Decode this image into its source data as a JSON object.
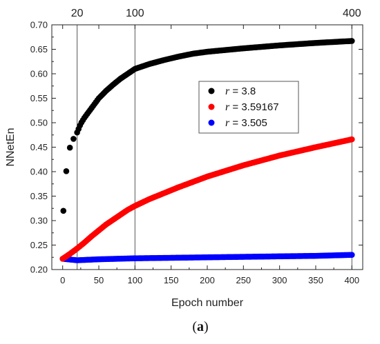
{
  "chart_data": {
    "type": "scatter",
    "title": "",
    "xlabel": "Epoch number",
    "ylabel": "NNetEn",
    "xlim": [
      -15,
      415
    ],
    "ylim": [
      0.2,
      0.7
    ],
    "xticks": [
      0,
      50,
      100,
      150,
      200,
      250,
      300,
      350,
      400
    ],
    "yticks": [
      0.2,
      0.25,
      0.3,
      0.35,
      0.4,
      0.45,
      0.5,
      0.55,
      0.6,
      0.65,
      0.7
    ],
    "xtick_labels": [
      "0",
      "50",
      "100",
      "150",
      "200",
      "250",
      "300",
      "350",
      "400"
    ],
    "ytick_labels": [
      "0.20",
      "0.25",
      "0.30",
      "0.35",
      "0.40",
      "0.45",
      "0.50",
      "0.55",
      "0.60",
      "0.65",
      "0.70"
    ],
    "vlines": [
      {
        "x": 20,
        "label": "20"
      },
      {
        "x": 100,
        "label": "100"
      },
      {
        "x": 400,
        "label": "400"
      }
    ],
    "grid": false,
    "legend_position": "center-right",
    "series": [
      {
        "legend_var": "r",
        "legend_value": " = 3.8",
        "color": "#000000",
        "x": [
          1,
          5,
          10,
          15,
          20,
          25,
          30,
          40,
          50,
          60,
          70,
          80,
          90,
          100,
          120,
          140,
          160,
          180,
          200,
          250,
          300,
          350,
          400
        ],
        "y": [
          0.32,
          0.401,
          0.449,
          0.467,
          0.48,
          0.498,
          0.51,
          0.53,
          0.55,
          0.565,
          0.578,
          0.59,
          0.6,
          0.61,
          0.62,
          0.628,
          0.635,
          0.641,
          0.645,
          0.652,
          0.658,
          0.663,
          0.667
        ]
      },
      {
        "legend_var": "r",
        "legend_value": " = 3.59167",
        "color": "#ff0000",
        "x": [
          0,
          10,
          20,
          30,
          40,
          50,
          60,
          70,
          80,
          90,
          100,
          120,
          140,
          160,
          180,
          200,
          250,
          300,
          350,
          400
        ],
        "y": [
          0.222,
          0.232,
          0.243,
          0.255,
          0.268,
          0.28,
          0.292,
          0.302,
          0.312,
          0.322,
          0.33,
          0.344,
          0.356,
          0.368,
          0.379,
          0.39,
          0.413,
          0.433,
          0.45,
          0.466
        ]
      },
      {
        "legend_var": "r",
        "legend_value": " = 3.505",
        "color": "#0000ff",
        "x": [
          0,
          20,
          50,
          100,
          150,
          200,
          250,
          300,
          350,
          400
        ],
        "y": [
          0.222,
          0.219,
          0.221,
          0.223,
          0.224,
          0.225,
          0.226,
          0.227,
          0.228,
          0.23
        ]
      }
    ]
  },
  "caption": {
    "open": "(",
    "letter": "a",
    "close": ")"
  }
}
